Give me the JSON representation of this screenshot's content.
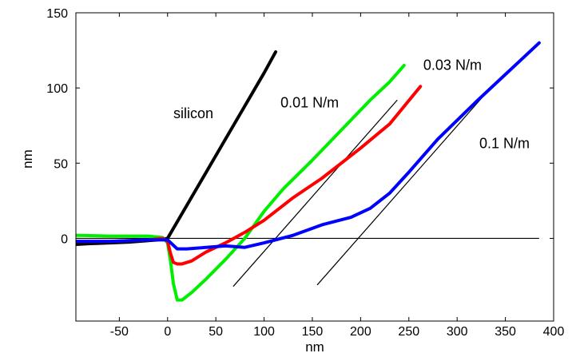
{
  "chart_data": {
    "type": "line",
    "xlabel": "nm",
    "ylabel": "nm",
    "xlim": [
      -95,
      400
    ],
    "ylim": [
      -55,
      150
    ],
    "xticks": [
      -50,
      0,
      50,
      100,
      150,
      200,
      250,
      300,
      350,
      400
    ],
    "yticks": [
      0,
      50,
      100,
      150
    ],
    "grid": false,
    "series": [
      {
        "name": "silicon",
        "color": "#000000",
        "x": [
          -95,
          -80,
          -60,
          -40,
          -20,
          -10,
          0,
          20,
          40,
          60,
          80,
          100,
          112
        ],
        "y": [
          -4,
          -3.5,
          -3,
          -2.5,
          -1.5,
          -1,
          0,
          22,
          44,
          66,
          88,
          110,
          124
        ]
      },
      {
        "name": "0.01 N/m",
        "color": "#00ee00",
        "x": [
          -95,
          -60,
          -20,
          -5,
          0,
          3,
          6,
          10,
          15,
          25,
          40,
          60,
          80,
          100,
          120,
          150,
          180,
          210,
          230,
          245
        ],
        "y": [
          2,
          1.5,
          1.5,
          0.5,
          -3,
          -15,
          -30,
          -41,
          -41,
          -36,
          -27,
          -14,
          0,
          18,
          33,
          52,
          72,
          92,
          104,
          115
        ]
      },
      {
        "name": "0.03 N/m",
        "color": "#ff0000",
        "x": [
          -95,
          -60,
          -20,
          -5,
          0,
          3,
          6,
          10,
          15,
          25,
          40,
          60,
          80,
          100,
          130,
          160,
          200,
          230,
          262
        ],
        "y": [
          -2,
          -2,
          -1,
          0,
          -2,
          -10,
          -16,
          -17,
          -17,
          -15,
          -9,
          -3,
          4,
          12,
          27,
          40,
          60,
          76,
          101
        ]
      },
      {
        "name": "0.1 N/m",
        "color": "#0000ff",
        "x": [
          -95,
          -60,
          -20,
          0,
          10,
          20,
          40,
          60,
          80,
          100,
          130,
          160,
          190,
          210,
          230,
          250,
          280,
          320,
          360,
          385
        ],
        "y": [
          -2,
          -2,
          -1,
          -1,
          -7,
          -7,
          -6,
          -5,
          -6,
          -3,
          2,
          9,
          14,
          20,
          30,
          44,
          66,
          91,
          115,
          130
        ]
      }
    ],
    "reference_lines": [
      {
        "x": [
          -95,
          385
        ],
        "y": [
          0,
          0
        ]
      },
      {
        "x": [
          68,
          238
        ],
        "y": [
          -32,
          92
        ]
      },
      {
        "x": [
          155,
          325
        ],
        "y": [
          -31,
          93
        ]
      }
    ],
    "annotations": [
      {
        "text": "silicon",
        "x": 6,
        "y": 80
      },
      {
        "text": "0.01 N/m",
        "x": 117,
        "y": 87
      },
      {
        "text": "0.03 N/m",
        "x": 265,
        "y": 112
      },
      {
        "text": "0.1 N/m",
        "x": 323,
        "y": 60
      }
    ]
  }
}
